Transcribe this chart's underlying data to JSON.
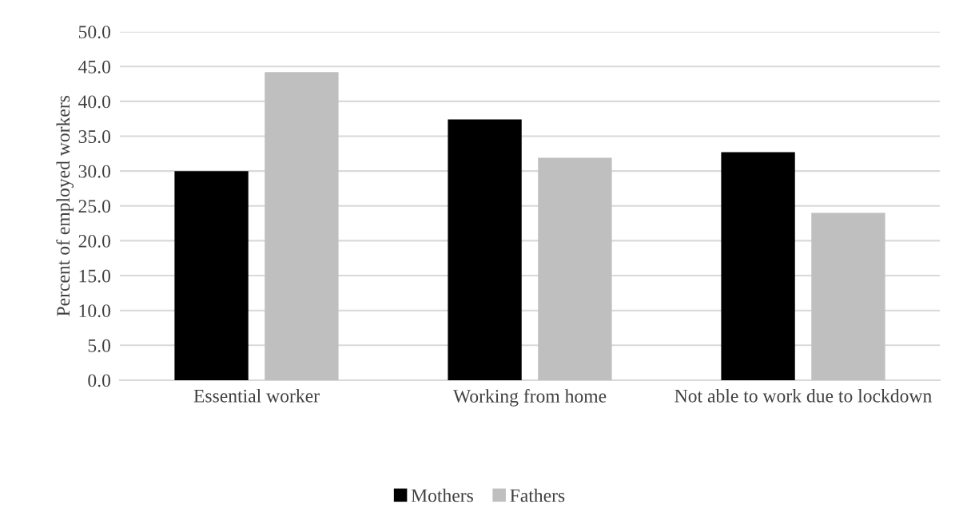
{
  "chart_data": {
    "type": "bar",
    "ylabel": "Percent of employed workers",
    "categories": [
      "Essential worker",
      "Working from home",
      "Not able to work due to lockdown"
    ],
    "series": [
      {
        "name": "Mothers",
        "color": "#000000",
        "values": [
          30.0,
          37.4,
          32.7
        ]
      },
      {
        "name": "Fathers",
        "color": "#bfbfbf",
        "values": [
          44.2,
          31.9,
          24.0
        ]
      }
    ],
    "ylim": [
      0,
      50
    ],
    "yticks": [
      {
        "value": 0,
        "label": "0.0"
      },
      {
        "value": 5,
        "label": "5.0"
      },
      {
        "value": 10,
        "label": "10.0"
      },
      {
        "value": 15,
        "label": "15.0"
      },
      {
        "value": 20,
        "label": "20.0"
      },
      {
        "value": 25,
        "label": "25.0"
      },
      {
        "value": 30,
        "label": "30.0"
      },
      {
        "value": 35,
        "label": "35.0"
      },
      {
        "value": 40,
        "label": "40.0"
      },
      {
        "value": 45,
        "label": "45.0"
      },
      {
        "value": 50,
        "label": "50.0"
      }
    ],
    "grid": "y",
    "legend": "bottom"
  }
}
